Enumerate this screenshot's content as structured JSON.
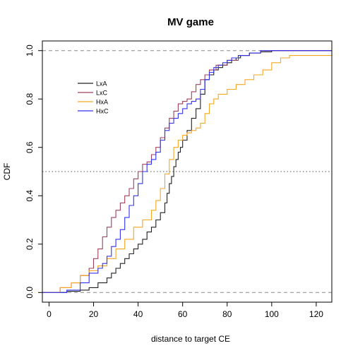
{
  "chart_data": {
    "type": "line",
    "step": true,
    "title": "MV game",
    "xlabel": "distance to target CE",
    "ylabel": "CDF",
    "xlim": [
      -3,
      127
    ],
    "ylim": [
      -0.04,
      1.04
    ],
    "xticks": [
      0,
      20,
      40,
      60,
      80,
      100,
      120
    ],
    "yticks": [
      0.0,
      0.2,
      0.4,
      0.6,
      0.8,
      1.0
    ],
    "xtick_labels": [
      "0",
      "20",
      "40",
      "60",
      "80",
      "100",
      "120"
    ],
    "ytick_labels": [
      "0.0",
      "0.2",
      "0.4",
      "0.6",
      "0.8",
      "1.0"
    ],
    "hlines": [
      {
        "y": 0.0,
        "style": "dashed",
        "color": "#888888"
      },
      {
        "y": 1.0,
        "style": "dashed",
        "color": "#888888"
      },
      {
        "y": 0.5,
        "style": "dotted",
        "color": "#555555"
      }
    ],
    "legend_position": "top-left",
    "series": [
      {
        "name": "LxA",
        "color": "#222222",
        "x": [
          -3,
          8,
          14,
          18,
          22,
          26,
          28,
          30,
          32,
          34,
          36,
          38,
          40,
          42,
          44,
          46,
          48,
          50,
          52,
          53,
          54,
          55,
          56,
          57,
          58,
          59,
          60,
          62,
          64,
          66,
          68,
          70,
          72,
          74,
          76,
          78,
          80,
          82,
          84,
          86,
          90,
          95,
          100,
          108,
          127
        ],
        "y": [
          0.0,
          0.005,
          0.01,
          0.02,
          0.04,
          0.06,
          0.08,
          0.1,
          0.12,
          0.14,
          0.16,
          0.18,
          0.2,
          0.22,
          0.25,
          0.27,
          0.3,
          0.33,
          0.37,
          0.41,
          0.45,
          0.48,
          0.52,
          0.55,
          0.58,
          0.6,
          0.63,
          0.67,
          0.72,
          0.76,
          0.82,
          0.88,
          0.9,
          0.92,
          0.93,
          0.94,
          0.95,
          0.96,
          0.97,
          0.98,
          0.99,
          0.995,
          1.0,
          1.0,
          1.0
        ]
      },
      {
        "name": "LxC",
        "color": "#a0405a",
        "x": [
          -3,
          5,
          10,
          14,
          18,
          20,
          22,
          24,
          26,
          28,
          30,
          32,
          34,
          36,
          38,
          40,
          42,
          44,
          46,
          48,
          50,
          52,
          54,
          56,
          58,
          60,
          62,
          64,
          66,
          68,
          70,
          72,
          75,
          80,
          85,
          90,
          95,
          127
        ],
        "y": [
          0.0,
          0.02,
          0.04,
          0.07,
          0.1,
          0.14,
          0.18,
          0.23,
          0.27,
          0.31,
          0.34,
          0.37,
          0.4,
          0.43,
          0.47,
          0.5,
          0.53,
          0.54,
          0.57,
          0.6,
          0.64,
          0.68,
          0.72,
          0.75,
          0.78,
          0.79,
          0.8,
          0.83,
          0.86,
          0.88,
          0.9,
          0.92,
          0.94,
          0.96,
          0.98,
          0.99,
          1.0,
          1.0
        ]
      },
      {
        "name": "HxA",
        "color": "#f5a623",
        "x": [
          -3,
          5,
          10,
          14,
          18,
          22,
          26,
          30,
          34,
          38,
          42,
          46,
          48,
          50,
          52,
          54,
          56,
          58,
          60,
          62,
          64,
          66,
          68,
          70,
          72,
          74,
          76,
          80,
          84,
          88,
          92,
          96,
          100,
          104,
          108,
          127
        ],
        "y": [
          0.0,
          0.02,
          0.04,
          0.07,
          0.09,
          0.11,
          0.14,
          0.18,
          0.22,
          0.27,
          0.3,
          0.34,
          0.38,
          0.43,
          0.49,
          0.55,
          0.6,
          0.63,
          0.65,
          0.66,
          0.67,
          0.68,
          0.7,
          0.74,
          0.78,
          0.8,
          0.82,
          0.84,
          0.86,
          0.88,
          0.9,
          0.92,
          0.95,
          0.97,
          0.98,
          0.985
        ]
      },
      {
        "name": "HxC",
        "color": "#3333ee",
        "x": [
          -3,
          8,
          14,
          18,
          22,
          24,
          26,
          28,
          30,
          32,
          34,
          36,
          38,
          40,
          42,
          44,
          46,
          48,
          50,
          52,
          54,
          56,
          58,
          60,
          62,
          64,
          66,
          68,
          70,
          72,
          74,
          76,
          78,
          80,
          82,
          85,
          90,
          95,
          127
        ],
        "y": [
          0.0,
          0.01,
          0.04,
          0.08,
          0.1,
          0.12,
          0.15,
          0.19,
          0.22,
          0.26,
          0.31,
          0.36,
          0.4,
          0.45,
          0.5,
          0.53,
          0.55,
          0.58,
          0.63,
          0.67,
          0.7,
          0.72,
          0.74,
          0.76,
          0.78,
          0.79,
          0.8,
          0.84,
          0.88,
          0.91,
          0.93,
          0.94,
          0.95,
          0.96,
          0.97,
          0.98,
          0.99,
          1.0,
          1.0
        ]
      }
    ]
  }
}
